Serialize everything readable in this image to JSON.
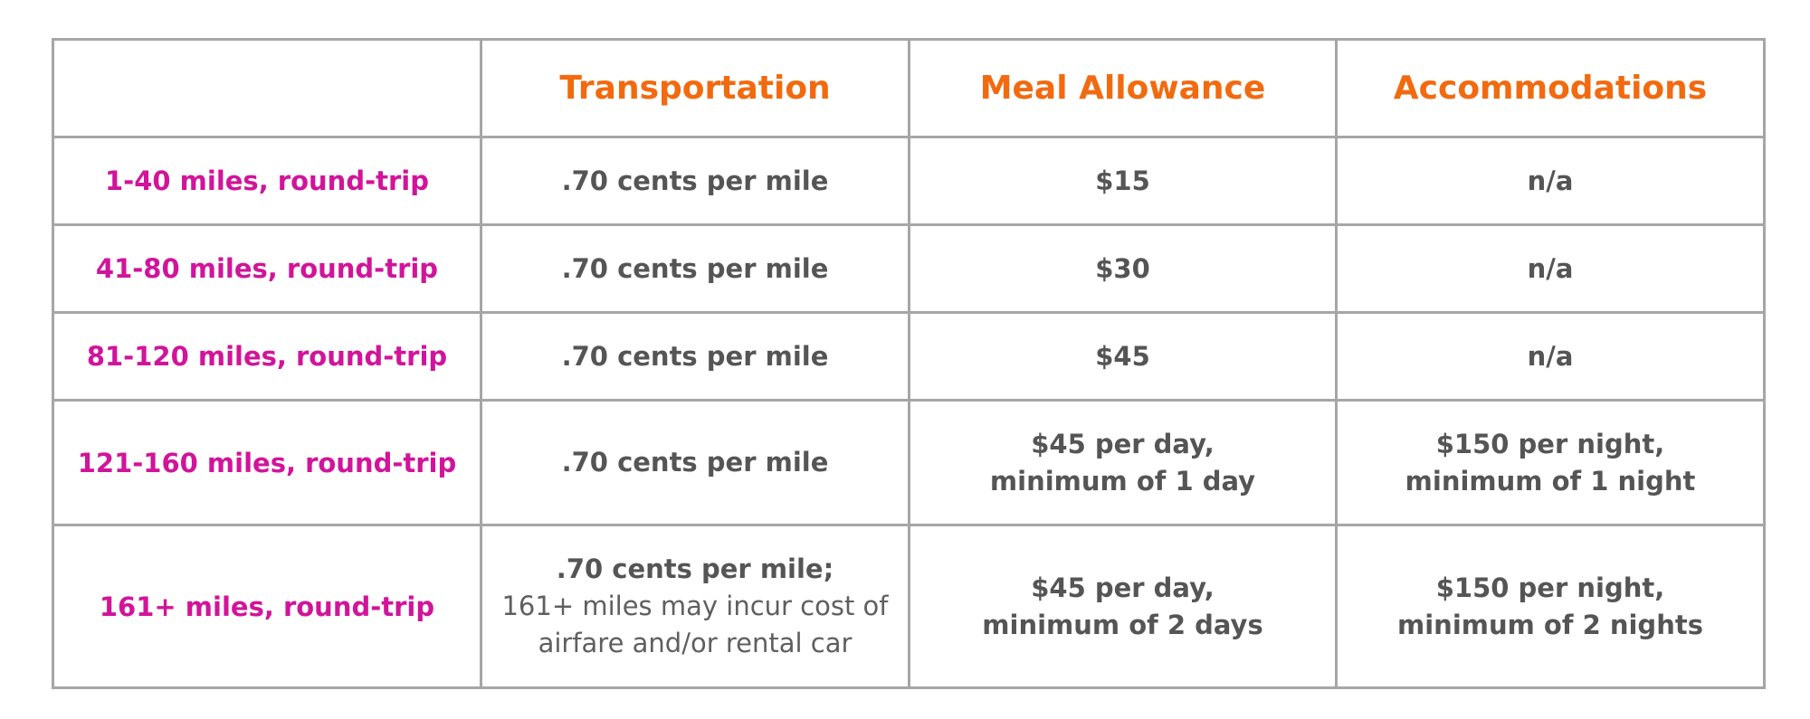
{
  "table": {
    "headers": [
      "",
      "Transportation",
      "Meal Allowance",
      "Accommodations"
    ],
    "rows": [
      {
        "label": "1-40 miles, round-trip",
        "transportation": ".70 cents per mile",
        "meal": [
          "$15"
        ],
        "accommodations": [
          "n/a"
        ]
      },
      {
        "label": "41-80 miles, round-trip",
        "transportation": ".70 cents per mile",
        "meal": [
          "$30"
        ],
        "accommodations": [
          "n/a"
        ]
      },
      {
        "label": "81-120 miles, round-trip",
        "transportation": ".70 cents per mile",
        "meal": [
          "$45"
        ],
        "accommodations": [
          "n/a"
        ]
      },
      {
        "label": "121-160 miles, round-trip",
        "transportation": ".70 cents per mile",
        "meal": [
          "$45 per day,",
          "minimum of 1 day"
        ],
        "accommodations": [
          "$150 per night,",
          "minimum of 1 night"
        ]
      },
      {
        "label": "161+ miles, round-trip",
        "transportation": ".70 cents per mile;",
        "transportation_note": [
          "161+ miles may incur cost of",
          "airfare and/or rental car"
        ],
        "meal": [
          "$45 per day,",
          "minimum of 2 days"
        ],
        "accommodations": [
          "$150 per night,",
          "minimum of 2 nights"
        ]
      }
    ]
  },
  "colors": {
    "header_text": "#f26a0f",
    "row_label_text": "#d1149a",
    "cell_text": "#555555",
    "border": "#a6a6a6"
  }
}
